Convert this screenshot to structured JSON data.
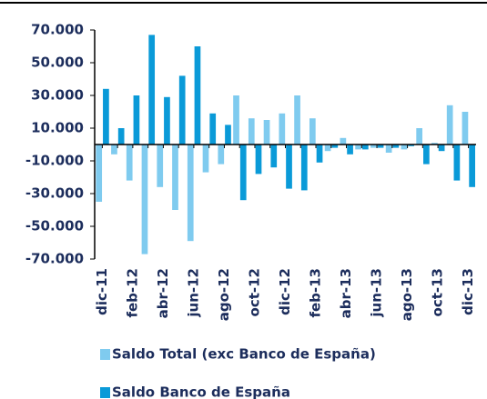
{
  "chart_data": {
    "type": "bar",
    "categories": [
      "dic-11",
      null,
      "feb-12",
      null,
      "abr-12",
      null,
      "jun-12",
      null,
      "ago-12",
      null,
      "oct-12",
      null,
      "dic-12",
      null,
      "feb-13",
      null,
      "abr-13",
      null,
      "jun-13",
      null,
      "ago-13",
      null,
      "oct-13",
      null,
      "dic-13"
    ],
    "series": [
      {
        "name": "Saldo Total (exc Banco de España)",
        "color": "#7fcbef",
        "values": [
          -35000,
          -6000,
          -22000,
          -67000,
          -26000,
          -40000,
          -59000,
          -17000,
          -12000,
          30000,
          16000,
          15000,
          19000,
          30000,
          16000,
          -4000,
          4000,
          -3000,
          -2000,
          -5000,
          -3000,
          10000,
          1000,
          24000,
          20000
        ]
      },
      {
        "name": "Saldo Banco de España",
        "color": "#0a9ad8",
        "values": [
          34000,
          10000,
          30000,
          67000,
          29000,
          42000,
          60000,
          19000,
          12000,
          -34000,
          -18000,
          -14000,
          -27000,
          -28000,
          -11000,
          -2000,
          -6000,
          -3000,
          -2000,
          -2000,
          -1000,
          -12000,
          -4000,
          -22000,
          -26000
        ]
      }
    ],
    "ylim": [
      -70000,
      70000
    ],
    "yticks": [
      {
        "value": -70000,
        "label": "-70.000"
      },
      {
        "value": -50000,
        "label": "-50.000"
      },
      {
        "value": -30000,
        "label": "-30.000"
      },
      {
        "value": -10000,
        "label": "-10.000"
      },
      {
        "value": 10000,
        "label": "10.000"
      },
      {
        "value": 30000,
        "label": "30.000"
      },
      {
        "value": 50000,
        "label": "50.000"
      },
      {
        "value": 70000,
        "label": "70.000"
      }
    ]
  }
}
